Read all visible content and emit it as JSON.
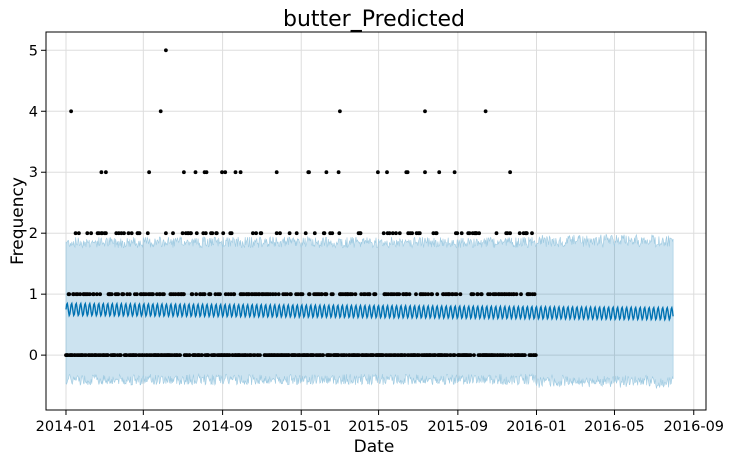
{
  "chart_data": {
    "type": "scatter",
    "title": "butter_Predicted",
    "xlabel": "Date",
    "ylabel": "Frequency",
    "x_ticks": [
      "2014-01",
      "2014-05",
      "2014-09",
      "2015-01",
      "2015-05",
      "2015-09",
      "2016-01",
      "2016-05",
      "2016-09"
    ],
    "y_ticks": [
      0,
      1,
      2,
      3,
      4,
      5
    ],
    "xlim": [
      "2013-12-01",
      "2016-09-20"
    ],
    "ylim": [
      -0.9,
      5.3
    ],
    "grid": true,
    "colors": {
      "observed": "#000000",
      "forecast": "#0072B2",
      "uncertainty": "#0072B2",
      "uncertainty_opacity": 0.2
    },
    "observed_range": [
      "2014-01-01",
      "2015-12-31"
    ],
    "forecast_range": [
      "2014-01-01",
      "2016-07-31"
    ],
    "forecast": {
      "baseline": 0.75,
      "weekly_amplitude": 0.1,
      "end_value": 0.68,
      "lower": -0.4,
      "upper": 1.85
    },
    "series": [
      {
        "name": "observed",
        "points": [
          {
            "x": "2014-01-09",
            "y": 4
          },
          {
            "x": "2014-05-28",
            "y": 4
          },
          {
            "x": "2014-06-05",
            "y": 5
          },
          {
            "x": "2015-03-02",
            "y": 4
          },
          {
            "x": "2015-07-12",
            "y": 4
          },
          {
            "x": "2015-10-14",
            "y": 4
          },
          {
            "x": "2014-02-25",
            "y": 3
          },
          {
            "x": "2014-03-04",
            "y": 3
          },
          {
            "x": "2014-05-10",
            "y": 3
          },
          {
            "x": "2014-07-03",
            "y": 3
          },
          {
            "x": "2014-07-21",
            "y": 3
          },
          {
            "x": "2014-08-04",
            "y": 3
          },
          {
            "x": "2014-08-07",
            "y": 3
          },
          {
            "x": "2014-08-31",
            "y": 3
          },
          {
            "x": "2014-09-05",
            "y": 3
          },
          {
            "x": "2014-09-21",
            "y": 3
          },
          {
            "x": "2014-09-29",
            "y": 3
          },
          {
            "x": "2014-11-24",
            "y": 3
          },
          {
            "x": "2015-01-12",
            "y": 3
          },
          {
            "x": "2015-01-13",
            "y": 3
          },
          {
            "x": "2015-02-09",
            "y": 3
          },
          {
            "x": "2015-02-28",
            "y": 3
          },
          {
            "x": "2015-04-30",
            "y": 3
          },
          {
            "x": "2015-05-14",
            "y": 3
          },
          {
            "x": "2015-06-13",
            "y": 3
          },
          {
            "x": "2015-06-15",
            "y": 3
          },
          {
            "x": "2015-07-12",
            "y": 3
          },
          {
            "x": "2015-08-03",
            "y": 3
          },
          {
            "x": "2015-08-27",
            "y": 3
          },
          {
            "x": "2015-11-21",
            "y": 3
          }
        ]
      }
    ]
  }
}
